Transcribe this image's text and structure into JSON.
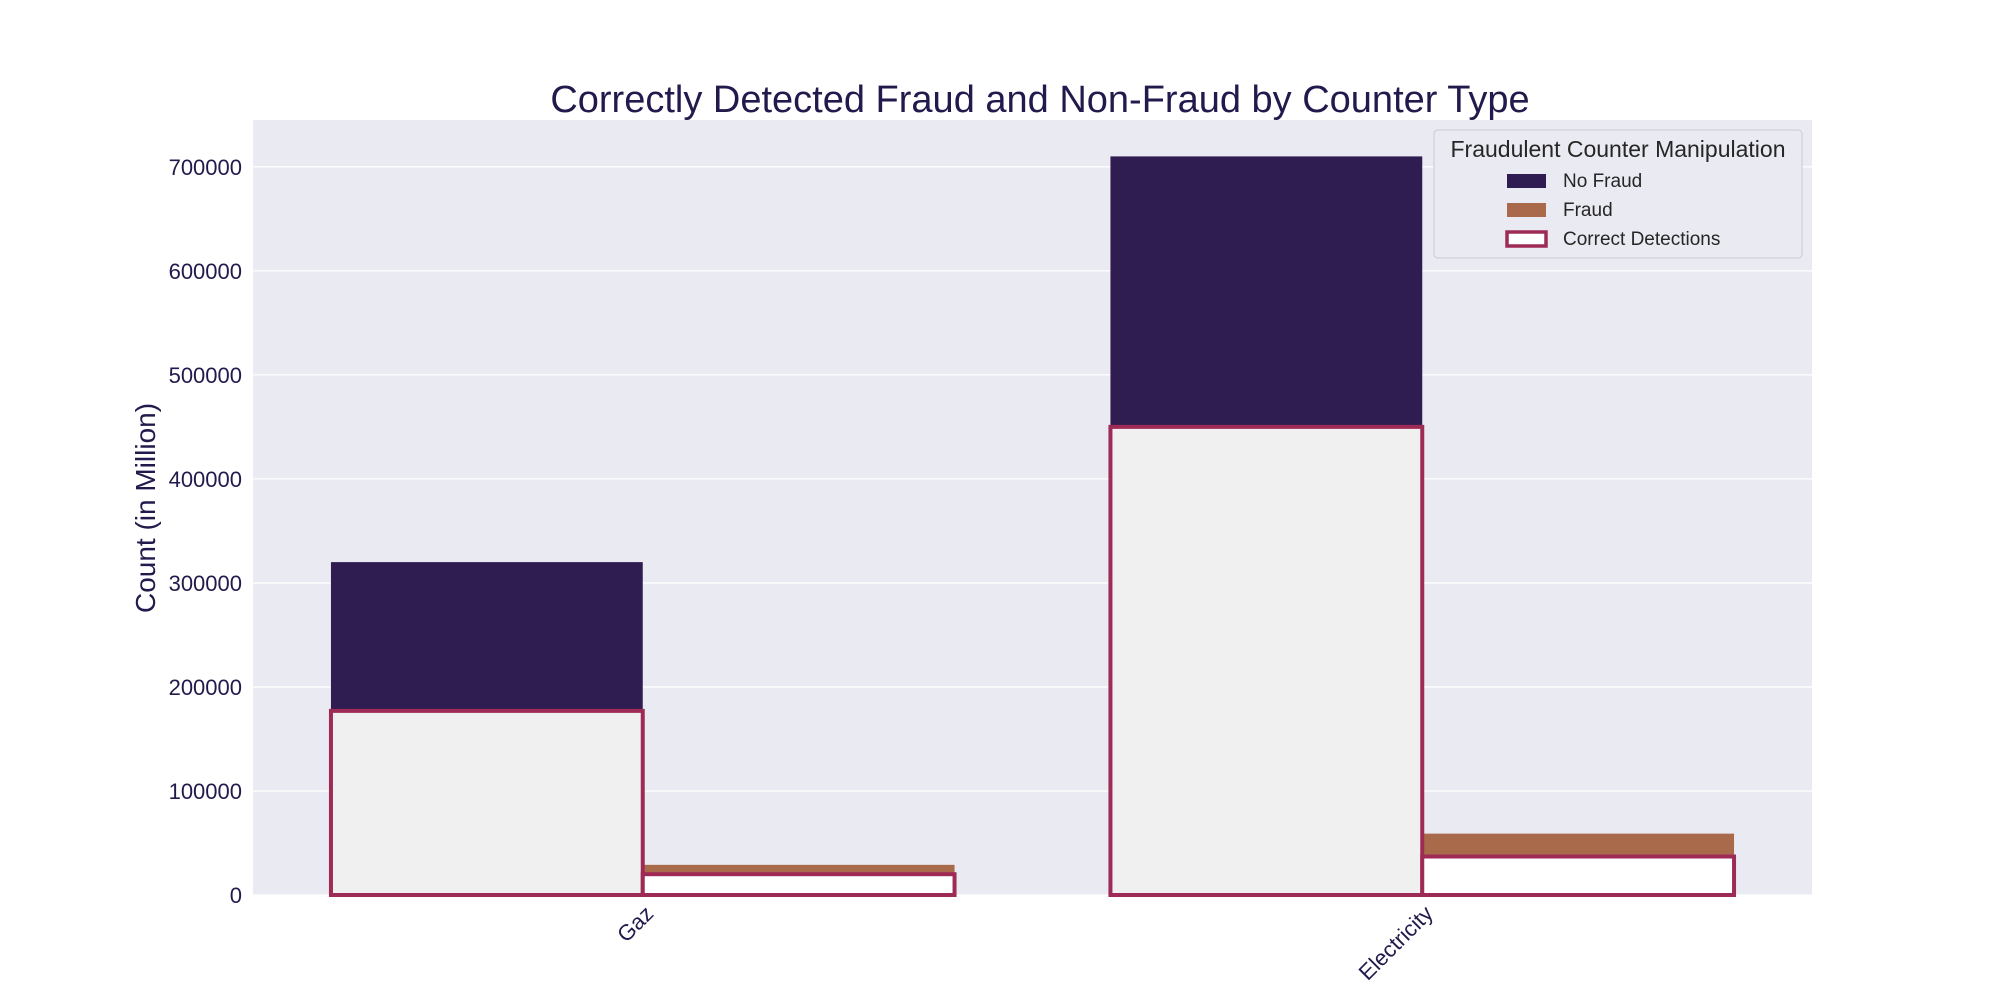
{
  "chart_data": {
    "type": "bar",
    "title": "Correctly Detected Fraud and Non-Fraud by Counter Type",
    "xlabel": "",
    "ylabel": "Count (in Million)",
    "categories": [
      "Gaz",
      "Electricity"
    ],
    "ylim": [
      0,
      745000
    ],
    "yticks": [
      "0",
      "100000",
      "200000",
      "300000",
      "400000",
      "500000",
      "600000",
      "700000"
    ],
    "grid": true,
    "legend_title": "Fraudulent Counter Manipulation",
    "legend_position": "top-right",
    "series": [
      {
        "name": "No Fraud",
        "values": [
          320000,
          710000
        ],
        "color": "#2f1c51"
      },
      {
        "name": "Fraud",
        "values": [
          29000,
          59000
        ],
        "color": "#a86a4a"
      }
    ],
    "overlay": {
      "name": "Correct Detections",
      "values_by_series": [
        [
          177000,
          450000
        ],
        [
          20000,
          37000
        ]
      ],
      "edge_color": "#9e2b55"
    },
    "colors": {
      "background": "#eaeaf2",
      "grid": "#ffffff",
      "text": "#221a4c"
    }
  }
}
